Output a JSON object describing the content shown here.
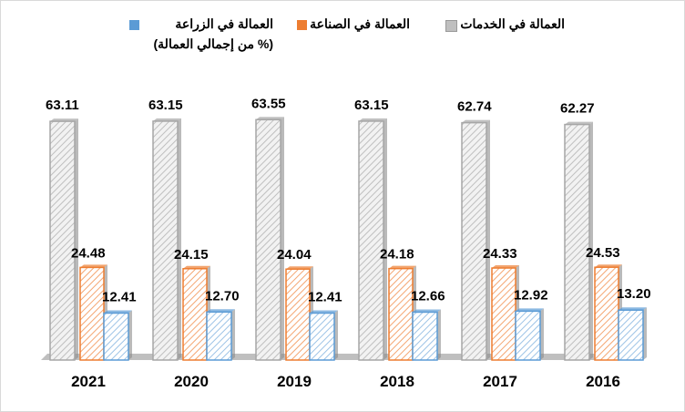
{
  "chart_data": {
    "type": "bar",
    "title": "",
    "categories": [
      "2021",
      "2020",
      "2019",
      "2018",
      "2017",
      "2016"
    ],
    "series": [
      {
        "name": "العمالة في الخدمات",
        "color": "#a6a6a6",
        "values": [
          63.11,
          63.15,
          63.55,
          63.15,
          62.74,
          62.27
        ]
      },
      {
        "name": "العمالة في الصناعة",
        "color": "#ed7d31",
        "values": [
          24.48,
          24.15,
          24.04,
          24.18,
          24.33,
          24.53
        ]
      },
      {
        "name": "العمالة في الزراعة",
        "color": "#5b9bd5",
        "values": [
          12.41,
          12.7,
          12.41,
          12.66,
          12.92,
          13.2
        ]
      }
    ],
    "legend_note": "(% من إجمالي العمالة)",
    "ylim": [
      0,
      70
    ],
    "legend_position": "top",
    "grid": false
  }
}
